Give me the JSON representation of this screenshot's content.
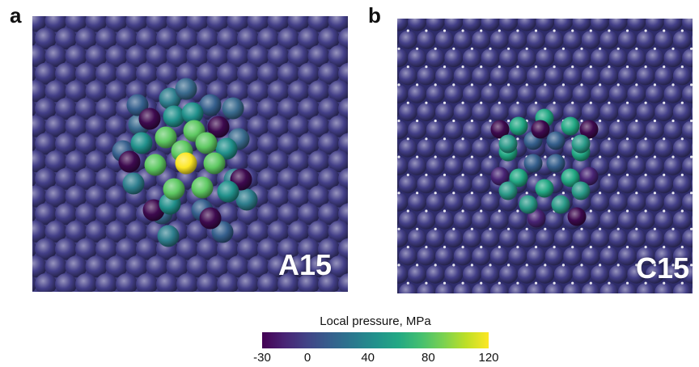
{
  "panels": [
    {
      "letter": "a",
      "label": "A15"
    },
    {
      "letter": "b",
      "label": "C15"
    }
  ],
  "colorbar": {
    "title": "Local pressure, MPa",
    "ticks": [
      {
        "value": -30,
        "label": "-30"
      },
      {
        "value": 0,
        "label": "0"
      },
      {
        "value": 40,
        "label": "40"
      },
      {
        "value": 80,
        "label": "80"
      },
      {
        "value": 120,
        "label": "120"
      }
    ],
    "range": [
      -30,
      120
    ],
    "colormap": "viridis"
  },
  "colors": {
    "bulk_atom": "#433f88",
    "hot_atom": "#fde725",
    "cold_atom": "#3d0a4f"
  }
}
